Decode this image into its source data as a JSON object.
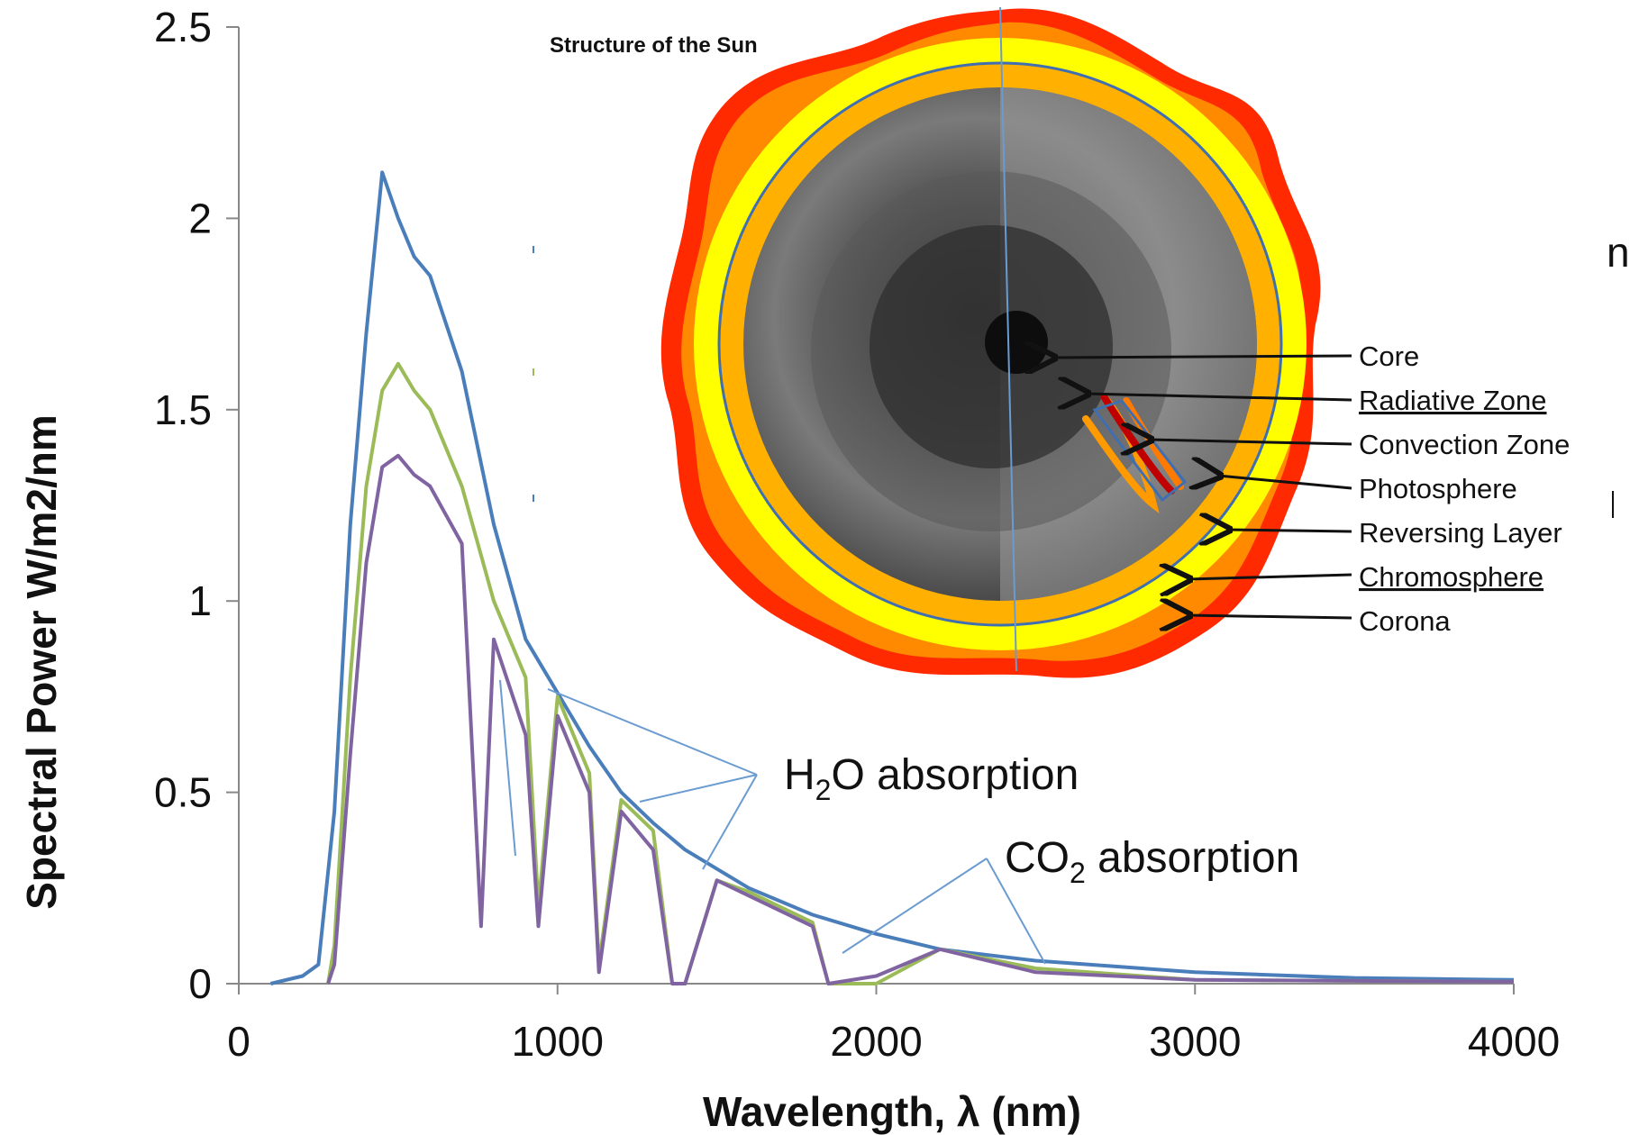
{
  "chart_data": {
    "type": "line",
    "xlabel": "Wavelength, λ (nm)",
    "ylabel": "Spectral Power W/m2/nm",
    "xlim": [
      0,
      4000
    ],
    "ylim": [
      0,
      2.5
    ],
    "xticks": [
      "0",
      "1000",
      "2000",
      "3000",
      "4000"
    ],
    "yticks": [
      "0",
      "0.5",
      "1",
      "1.5",
      "2",
      "2.5"
    ],
    "grid": false,
    "series": [
      {
        "color": "#4a7ebb",
        "x": [
          100,
          200,
          250,
          300,
          350,
          400,
          450,
          500,
          550,
          600,
          700,
          800,
          900,
          1000,
          1100,
          1200,
          1300,
          1400,
          1500,
          1600,
          1800,
          2000,
          2200,
          2500,
          3000,
          3500,
          4000
        ],
        "y": [
          0.0,
          0.02,
          0.05,
          0.45,
          1.2,
          1.7,
          2.12,
          2.0,
          1.9,
          1.85,
          1.6,
          1.2,
          0.9,
          0.76,
          0.62,
          0.5,
          0.42,
          0.35,
          0.3,
          0.25,
          0.18,
          0.13,
          0.09,
          0.06,
          0.03,
          0.015,
          0.01
        ]
      },
      {
        "color": "#9bbb59",
        "x": [
          280,
          300,
          350,
          400,
          450,
          500,
          550,
          600,
          700,
          800,
          900,
          940,
          1000,
          1100,
          1130,
          1200,
          1300,
          1360,
          1400,
          1500,
          1600,
          1800,
          1850,
          2000,
          2200,
          2500,
          3000,
          4000
        ],
        "y": [
          0.0,
          0.1,
          0.8,
          1.3,
          1.55,
          1.62,
          1.55,
          1.5,
          1.3,
          1.0,
          0.8,
          0.2,
          0.75,
          0.55,
          0.05,
          0.48,
          0.4,
          0.0,
          0.0,
          0.27,
          0.24,
          0.16,
          0.0,
          0.0,
          0.09,
          0.04,
          0.01,
          0.005
        ]
      },
      {
        "color": "#8064a2",
        "x": [
          280,
          300,
          350,
          400,
          450,
          500,
          550,
          600,
          700,
          760,
          800,
          900,
          940,
          1000,
          1100,
          1130,
          1200,
          1300,
          1360,
          1400,
          1500,
          1600,
          1800,
          1850,
          2000,
          2200,
          2500,
          3000,
          4000
        ],
        "y": [
          0.0,
          0.05,
          0.6,
          1.1,
          1.35,
          1.38,
          1.33,
          1.3,
          1.15,
          0.15,
          0.9,
          0.65,
          0.15,
          0.7,
          0.5,
          0.03,
          0.45,
          0.35,
          0.0,
          0.0,
          0.27,
          0.23,
          0.15,
          0.0,
          0.02,
          0.09,
          0.03,
          0.01,
          0.005
        ]
      }
    ]
  },
  "annotations": {
    "h2o": {
      "text": "H",
      "sub": "2",
      "rest": "O absorption"
    },
    "co2": {
      "text": "CO",
      "sub": "2",
      "rest": " absorption"
    }
  },
  "sun_diagram": {
    "title": "Structure of the Sun",
    "labels": [
      "Core",
      "Radiative Zone",
      "Convection Zone",
      "Photosphere",
      "Reversing Layer",
      "Chromosphere",
      "Corona"
    ],
    "colors": {
      "corona_outer": "#ff2a00",
      "corona_mid": "#ff9900",
      "corona_inner": "#ffff00",
      "chromosphere": "#ffb000",
      "photosphere_ring": "#3f6fb0",
      "interior_dark": "#2a2a2a",
      "interior_light": "#bdbdbd"
    }
  },
  "stray_text": {
    "char_n": "n"
  }
}
